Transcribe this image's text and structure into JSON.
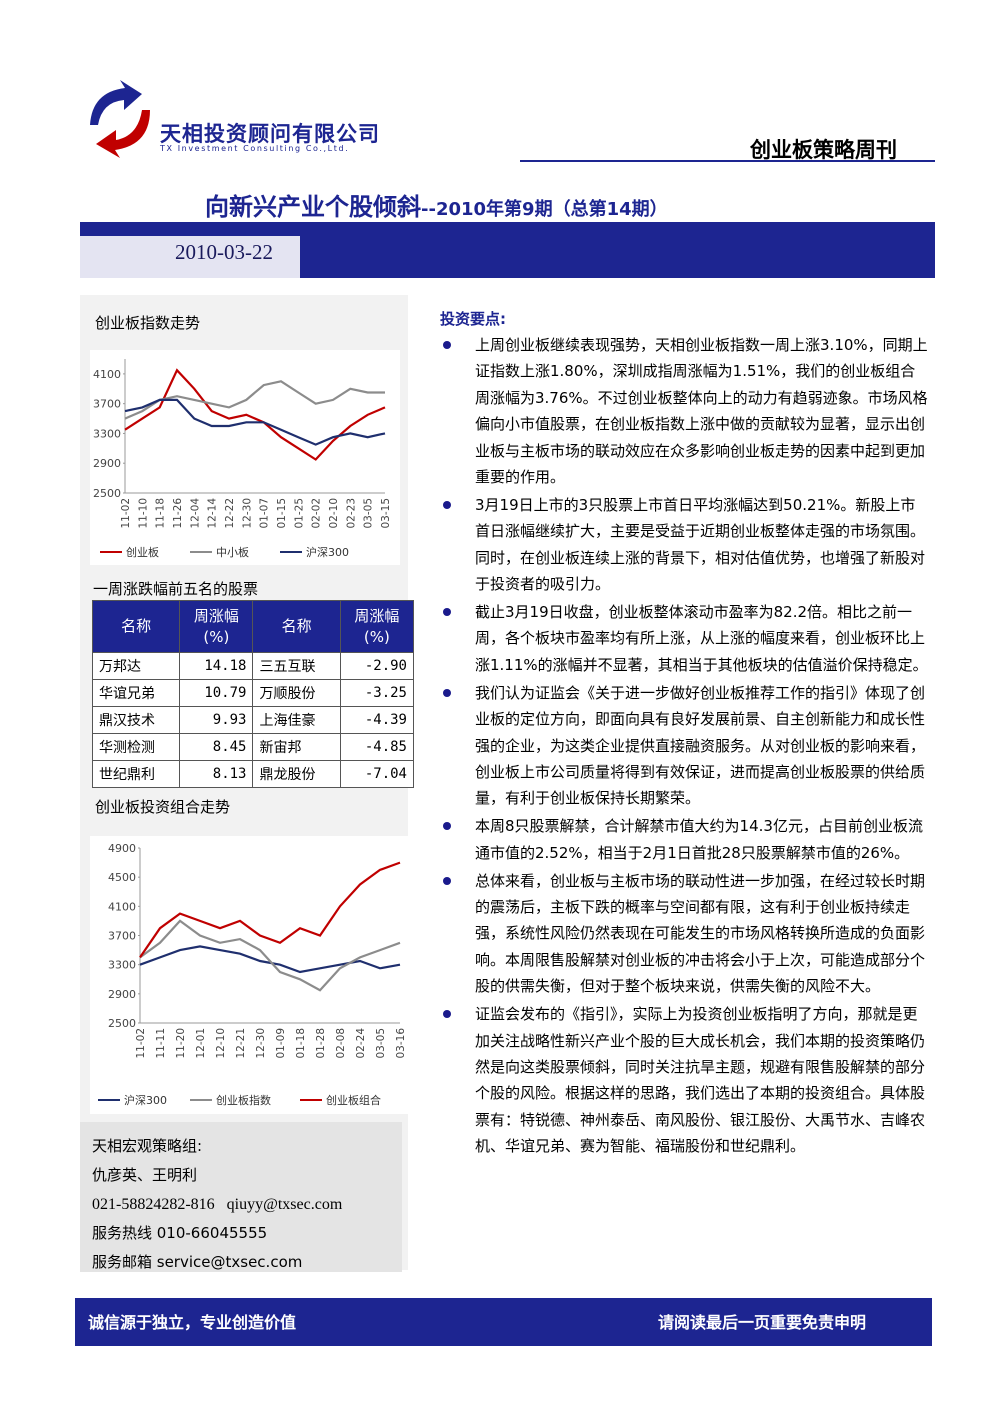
{
  "header": {
    "company_name": "天相投资顾问有限公司",
    "company_en": "TX Investment Consulting Co.,Ltd.",
    "publication": "创业板策略周刊"
  },
  "title": "向新兴产业个股倾斜",
  "subtitle": "--2010年第9期（总第14期）",
  "date": "2010-03-22",
  "chart_data": [
    {
      "type": "line",
      "title": "创业板指数走势",
      "categories": [
        "11-02",
        "11-10",
        "11-18",
        "11-26",
        "12-04",
        "12-14",
        "12-22",
        "12-30",
        "01-07",
        "01-15",
        "01-25",
        "02-02",
        "02-10",
        "02-23",
        "03-05",
        "03-15"
      ],
      "ylim": [
        2500,
        4300
      ],
      "yticks": [
        2500,
        2900,
        3300,
        3700,
        4100
      ],
      "series": [
        {
          "name": "创业板",
          "color": "#c00000",
          "values": [
            3350,
            3500,
            3650,
            4150,
            3900,
            3600,
            3500,
            3550,
            3450,
            3250,
            3100,
            2950,
            3200,
            3400,
            3550,
            3650
          ]
        },
        {
          "name": "中小板",
          "color": "#8c8c8c",
          "values": [
            3500,
            3600,
            3750,
            3800,
            3750,
            3700,
            3650,
            3750,
            3950,
            4000,
            3850,
            3700,
            3750,
            3900,
            3850,
            3850
          ]
        },
        {
          "name": "沪深300",
          "color": "#1f2f6e",
          "values": [
            3600,
            3650,
            3750,
            3750,
            3500,
            3400,
            3400,
            3450,
            3450,
            3350,
            3250,
            3150,
            3250,
            3300,
            3250,
            3300
          ]
        }
      ]
    },
    {
      "type": "line",
      "title": "创业板投资组合走势",
      "categories": [
        "11-02",
        "11-11",
        "11-20",
        "12-01",
        "12-10",
        "12-21",
        "12-30",
        "01-09",
        "01-18",
        "01-28",
        "02-08",
        "02-24",
        "03-05",
        "03-16"
      ],
      "ylim": [
        2500,
        4900
      ],
      "yticks": [
        2500,
        2900,
        3300,
        3700,
        4100,
        4500,
        4900
      ],
      "series": [
        {
          "name": "沪深300",
          "color": "#1f2f6e",
          "values": [
            3300,
            3400,
            3500,
            3550,
            3500,
            3450,
            3350,
            3300,
            3200,
            3250,
            3300,
            3350,
            3250,
            3300
          ]
        },
        {
          "name": "创业板指数",
          "color": "#8c8c8c",
          "values": [
            3400,
            3600,
            3900,
            3700,
            3600,
            3650,
            3500,
            3200,
            3100,
            2950,
            3250,
            3400,
            3500,
            3600
          ]
        },
        {
          "name": "创业板组合",
          "color": "#c00000",
          "values": [
            3400,
            3800,
            4000,
            3900,
            3800,
            3900,
            3700,
            3600,
            3800,
            3700,
            4100,
            4400,
            4600,
            4700
          ]
        }
      ]
    }
  ],
  "table": {
    "title": "一周涨跌幅前五名的股票",
    "header": [
      "名称",
      "周涨幅\n(%)",
      "名称",
      "周涨幅\n(%)"
    ],
    "rows": [
      [
        "万邦达",
        "14.18",
        "三五互联",
        "-2.90"
      ],
      [
        "华谊兄弟",
        "10.79",
        "万顺股份",
        "-3.25"
      ],
      [
        "鼎汉技术",
        "9.93",
        "上海佳豪",
        "-4.39"
      ],
      [
        "华测检测",
        "8.45",
        "新宙邦",
        "-4.85"
      ],
      [
        "世纪鼎利",
        "8.13",
        "鼎龙股份",
        "-7.04"
      ]
    ]
  },
  "contact": {
    "group": "天相宏观策略组:",
    "names": "仇彦英、王明利",
    "phone": "021-58824282-816",
    "email": "qiuyy@txsec.com",
    "hotline": "服务热线 010-66045555",
    "service_email": "服务邮箱 service@txsec.com"
  },
  "main": {
    "heading": "投资要点:",
    "bullets": [
      "上周创业板继续表现强势，天相创业板指数一周上涨3.10%，同期上证指数上涨1.80%，深圳成指周涨幅为1.51%，我们的创业板组合周涨幅为3.76%。不过创业板整体向上的动力有趋弱迹象。市场风格偏向小市值股票，在创业板指数上涨中做的贡献较为显著，显示出创业板与主板市场的联动效应在众多影响创业板走势的因素中起到更加重要的作用。",
      "3月19日上市的3只股票上市首日平均涨幅达到50.21%。新股上市首日涨幅继续扩大，主要是受益于近期创业板整体走强的市场氛围。同时，在创业板连续上涨的背景下，相对估值优势，也增强了新股对于投资者的吸引力。",
      "截止3月19日收盘，创业板整体滚动市盈率为82.2倍。相比之前一周，各个板块市盈率均有所上涨，从上涨的幅度来看，创业板环比上涨1.11%的涨幅并不显著，其相当于其他板块的估值溢价保持稳定。",
      "我们认为证监会《关于进一步做好创业板推荐工作的指引》体现了创业板的定位方向，即面向具有良好发展前景、自主创新能力和成长性强的企业，为这类企业提供直接融资服务。从对创业板的影响来看，创业板上市公司质量将得到有效保证，进而提高创业板股票的供给质量，有利于创业板保持长期繁荣。",
      "本周8只股票解禁，合计解禁市值大约为14.3亿元，占目前创业板流通市值的2.52%，相当于2月1日首批28只股票解禁市值的26%。",
      "总体来看，创业板与主板市场的联动性进一步加强，在经过较长时期的震荡后，主板下跌的概率与空间都有限，这有利于创业板持续走强，系统性风险仍然表现在可能发生的市场风格转换所造成的负面影响。本周限售股解禁对创业板的冲击将会小于上次，可能造成部分个股的供需失衡，但对于整个板块来说，供需失衡的风险不大。",
      "证监会发布的《指引》，实际上为投资创业板指明了方向，那就是更加关注战略性新兴产业个股的巨大成长机会，我们本期的投资策略仍然是向这类股票倾斜，同时关注抗旱主题，规避有限售股解禁的部分个股的风险。根据这样的思路，我们选出了本期的投资组合。具体股票有：特锐德、神州泰岳、南风股份、银江股份、大禹节水、吉峰农机、华谊兄弟、赛为智能、福瑞股份和世纪鼎利。"
    ]
  },
  "footer": {
    "left": "诚信源于独立，专业创造价值",
    "right": "请阅读最后一页重要免责申明"
  }
}
